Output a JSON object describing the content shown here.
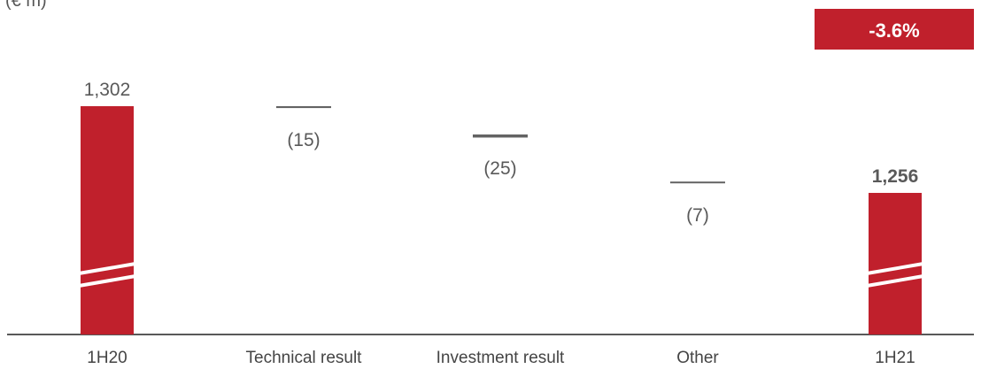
{
  "unit_label": "(€ m)",
  "colors": {
    "accent": "#c0202c",
    "delta_bar": "#636363",
    "text": "#595959",
    "axis": "#222222"
  },
  "chart_data": {
    "type": "bar",
    "subtype": "waterfall",
    "categories": [
      "1H20",
      "Technical result",
      "Investment result",
      "Other",
      "1H21"
    ],
    "values": [
      1302,
      -15,
      -25,
      -7,
      1256
    ],
    "value_labels": [
      "1,302",
      "(15)",
      "(25)",
      "(7)",
      "1,256"
    ],
    "axis_break": true,
    "change_badge": "-3.6%"
  }
}
